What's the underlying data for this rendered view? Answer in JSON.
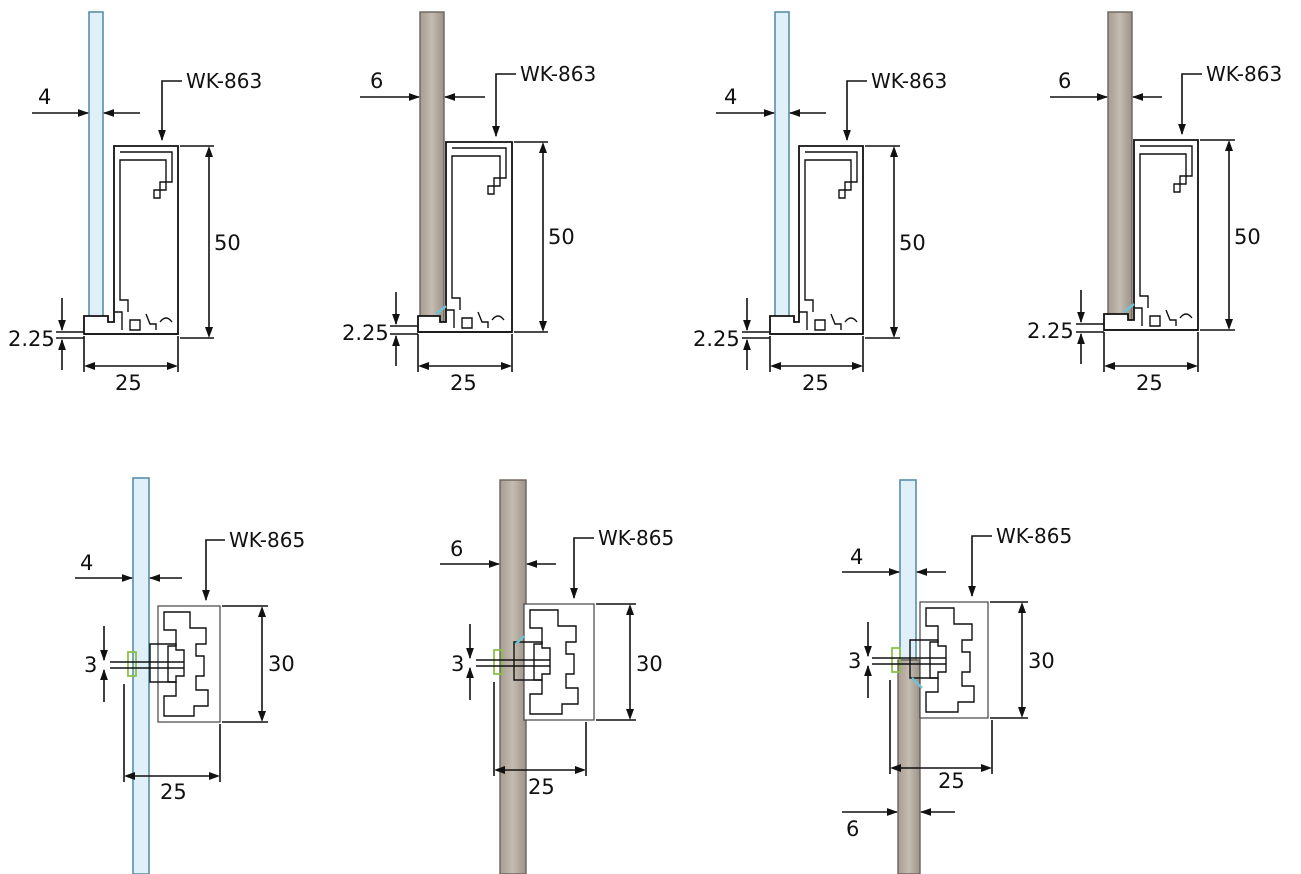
{
  "colors": {
    "glass_fill": "#dff0f8",
    "glass_edge": "#5a8fa8",
    "wood_fill": "#b9afa4",
    "wood_edge": "#6b625a",
    "line": "#111111",
    "gasket": "#6fc1d6",
    "clip": "#8cc04a"
  },
  "row1": {
    "profile_label": "WK-863",
    "height_dim": "50",
    "width_dim": "25",
    "base_dim": "2.25",
    "panel1_thickness": "4",
    "panel2_thickness": "6",
    "panel3_thickness": "4",
    "panel4_thickness": "6"
  },
  "row2": {
    "profile_label": "WK-865",
    "height_dim": "30",
    "width_dim": "25",
    "gap_dim": "3",
    "panel1_thickness": "4",
    "panel2_thickness": "6",
    "panel3_thickness_top": "4",
    "panel3_thickness_bottom": "6"
  }
}
